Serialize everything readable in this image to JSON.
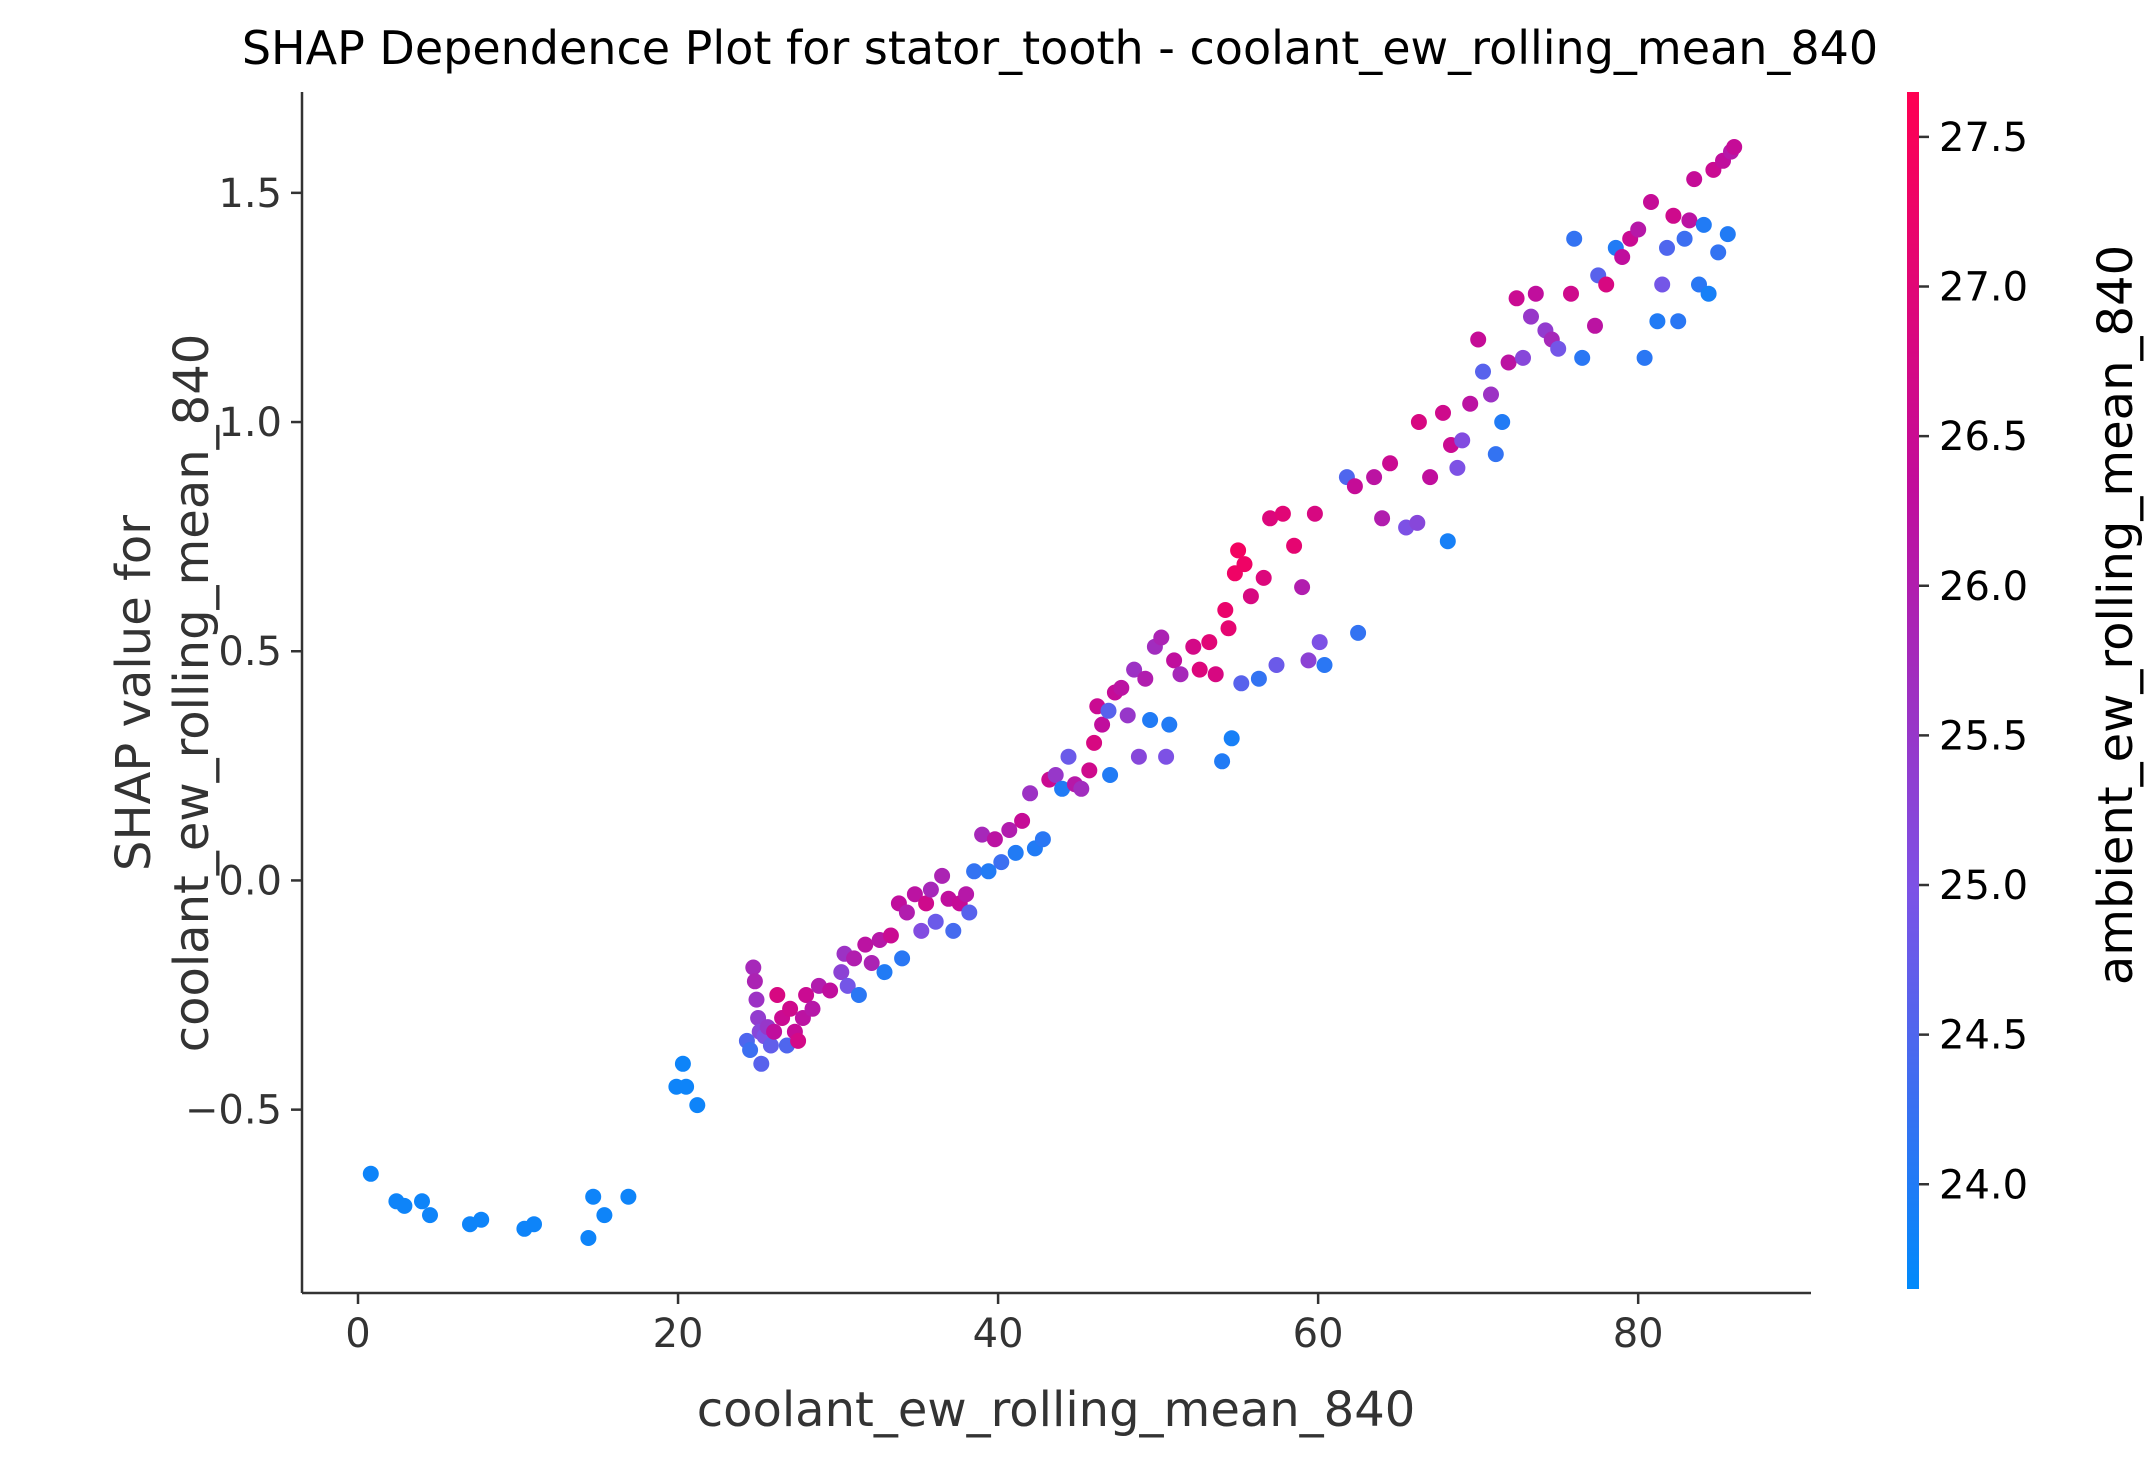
{
  "chart_data": {
    "type": "scatter",
    "title": "SHAP Dependence Plot for stator_tooth - coolant_ew_rolling_mean_840",
    "xlabel": "coolant_ew_rolling_mean_840",
    "ylabel_lines": [
      "SHAP value for",
      "coolant_ew_rolling_mean_840"
    ],
    "xlim": [
      -3.5,
      90.8
    ],
    "ylim": [
      -0.9,
      1.72
    ],
    "xticks": [
      0,
      20,
      40,
      60,
      80
    ],
    "xtick_labels": [
      "0",
      "20",
      "40",
      "60",
      "80"
    ],
    "yticks": [
      -0.5,
      0.0,
      0.5,
      1.0,
      1.5
    ],
    "ytick_labels": [
      "−0.5",
      "0.0",
      "0.5",
      "1.0",
      "1.5"
    ],
    "grid": false,
    "colorbar": {
      "label": "ambient_ew_rolling_mean_840",
      "range": [
        23.65,
        27.65
      ],
      "ticks": [
        24.0,
        24.5,
        25.0,
        25.5,
        26.0,
        26.5,
        27.0,
        27.5
      ],
      "tick_labels": [
        "24.0",
        "24.5",
        "25.0",
        "25.5",
        "26.0",
        "26.5",
        "27.0",
        "27.5"
      ],
      "colormap": [
        "#008afb",
        "#7c52e6",
        "#c10d9c",
        "#ff0052"
      ]
    },
    "points": [
      {
        "x": 0.8,
        "y": -0.64,
        "c": 23.8
      },
      {
        "x": 2.4,
        "y": -0.7,
        "c": 23.8
      },
      {
        "x": 2.9,
        "y": -0.71,
        "c": 23.8
      },
      {
        "x": 4.0,
        "y": -0.7,
        "c": 23.8
      },
      {
        "x": 4.5,
        "y": -0.73,
        "c": 23.8
      },
      {
        "x": 7.0,
        "y": -0.75,
        "c": 23.8
      },
      {
        "x": 7.7,
        "y": -0.74,
        "c": 23.8
      },
      {
        "x": 10.4,
        "y": -0.76,
        "c": 23.8
      },
      {
        "x": 11.0,
        "y": -0.75,
        "c": 23.8
      },
      {
        "x": 14.4,
        "y": -0.78,
        "c": 23.8
      },
      {
        "x": 14.7,
        "y": -0.69,
        "c": 23.8
      },
      {
        "x": 15.4,
        "y": -0.73,
        "c": 23.8
      },
      {
        "x": 16.9,
        "y": -0.69,
        "c": 23.8
      },
      {
        "x": 19.9,
        "y": -0.45,
        "c": 23.8
      },
      {
        "x": 20.3,
        "y": -0.4,
        "c": 23.8
      },
      {
        "x": 20.5,
        "y": -0.45,
        "c": 23.8
      },
      {
        "x": 21.2,
        "y": -0.49,
        "c": 23.8
      },
      {
        "x": 24.3,
        "y": -0.35,
        "c": 24.5
      },
      {
        "x": 24.5,
        "y": -0.37,
        "c": 24.3
      },
      {
        "x": 24.7,
        "y": -0.19,
        "c": 25.8
      },
      {
        "x": 24.8,
        "y": -0.22,
        "c": 25.9
      },
      {
        "x": 24.9,
        "y": -0.26,
        "c": 25.6
      },
      {
        "x": 25.0,
        "y": -0.3,
        "c": 25.4
      },
      {
        "x": 25.1,
        "y": -0.33,
        "c": 25.2
      },
      {
        "x": 25.2,
        "y": -0.4,
        "c": 24.6
      },
      {
        "x": 25.4,
        "y": -0.34,
        "c": 25.0
      },
      {
        "x": 25.6,
        "y": -0.32,
        "c": 25.5
      },
      {
        "x": 25.8,
        "y": -0.36,
        "c": 24.7
      },
      {
        "x": 26.0,
        "y": -0.33,
        "c": 26.3
      },
      {
        "x": 26.2,
        "y": -0.25,
        "c": 26.8
      },
      {
        "x": 26.5,
        "y": -0.3,
        "c": 26.5
      },
      {
        "x": 26.8,
        "y": -0.36,
        "c": 24.5
      },
      {
        "x": 27.0,
        "y": -0.28,
        "c": 26.6
      },
      {
        "x": 27.3,
        "y": -0.33,
        "c": 26.4
      },
      {
        "x": 27.5,
        "y": -0.35,
        "c": 26.7
      },
      {
        "x": 27.8,
        "y": -0.3,
        "c": 26.2
      },
      {
        "x": 28.0,
        "y": -0.25,
        "c": 26.5
      },
      {
        "x": 28.4,
        "y": -0.28,
        "c": 26.1
      },
      {
        "x": 28.8,
        "y": -0.23,
        "c": 26.0
      },
      {
        "x": 29.5,
        "y": -0.24,
        "c": 26.3
      },
      {
        "x": 30.2,
        "y": -0.2,
        "c": 25.3
      },
      {
        "x": 30.4,
        "y": -0.16,
        "c": 25.6
      },
      {
        "x": 30.6,
        "y": -0.23,
        "c": 24.9
      },
      {
        "x": 31.0,
        "y": -0.17,
        "c": 26.0
      },
      {
        "x": 31.3,
        "y": -0.25,
        "c": 24.1
      },
      {
        "x": 31.7,
        "y": -0.14,
        "c": 26.2
      },
      {
        "x": 32.1,
        "y": -0.18,
        "c": 25.9
      },
      {
        "x": 32.6,
        "y": -0.13,
        "c": 26.1
      },
      {
        "x": 32.9,
        "y": -0.2,
        "c": 24.0
      },
      {
        "x": 33.3,
        "y": -0.12,
        "c": 26.5
      },
      {
        "x": 33.8,
        "y": -0.05,
        "c": 26.3
      },
      {
        "x": 34.0,
        "y": -0.17,
        "c": 24.1
      },
      {
        "x": 34.3,
        "y": -0.07,
        "c": 26.0
      },
      {
        "x": 34.8,
        "y": -0.03,
        "c": 26.2
      },
      {
        "x": 35.2,
        "y": -0.11,
        "c": 25.1
      },
      {
        "x": 35.5,
        "y": -0.05,
        "c": 26.6
      },
      {
        "x": 35.8,
        "y": -0.02,
        "c": 25.8
      },
      {
        "x": 36.1,
        "y": -0.09,
        "c": 24.8
      },
      {
        "x": 36.5,
        "y": 0.01,
        "c": 25.9
      },
      {
        "x": 36.9,
        "y": -0.04,
        "c": 26.3
      },
      {
        "x": 37.2,
        "y": -0.11,
        "c": 24.4
      },
      {
        "x": 37.6,
        "y": -0.05,
        "c": 26.4
      },
      {
        "x": 38.0,
        "y": -0.03,
        "c": 26.1
      },
      {
        "x": 38.2,
        "y": -0.07,
        "c": 24.6
      },
      {
        "x": 38.5,
        "y": 0.02,
        "c": 24.2
      },
      {
        "x": 39.0,
        "y": 0.1,
        "c": 25.8
      },
      {
        "x": 39.4,
        "y": 0.02,
        "c": 24.0
      },
      {
        "x": 39.8,
        "y": 0.09,
        "c": 26.2
      },
      {
        "x": 40.2,
        "y": 0.04,
        "c": 24.3
      },
      {
        "x": 40.7,
        "y": 0.11,
        "c": 26.0
      },
      {
        "x": 41.1,
        "y": 0.06,
        "c": 24.0
      },
      {
        "x": 41.5,
        "y": 0.13,
        "c": 26.4
      },
      {
        "x": 42.0,
        "y": 0.19,
        "c": 25.6
      },
      {
        "x": 42.3,
        "y": 0.07,
        "c": 24.0
      },
      {
        "x": 42.8,
        "y": 0.09,
        "c": 24.1
      },
      {
        "x": 43.2,
        "y": 0.22,
        "c": 26.5
      },
      {
        "x": 43.6,
        "y": 0.23,
        "c": 25.5
      },
      {
        "x": 44.0,
        "y": 0.2,
        "c": 24.0
      },
      {
        "x": 44.4,
        "y": 0.27,
        "c": 24.8
      },
      {
        "x": 44.8,
        "y": 0.21,
        "c": 26.1
      },
      {
        "x": 45.2,
        "y": 0.2,
        "c": 25.7
      },
      {
        "x": 45.7,
        "y": 0.24,
        "c": 26.6
      },
      {
        "x": 46.0,
        "y": 0.3,
        "c": 26.8
      },
      {
        "x": 46.2,
        "y": 0.38,
        "c": 26.5
      },
      {
        "x": 46.5,
        "y": 0.34,
        "c": 26.3
      },
      {
        "x": 46.9,
        "y": 0.37,
        "c": 24.6
      },
      {
        "x": 47.0,
        "y": 0.23,
        "c": 24.0
      },
      {
        "x": 47.3,
        "y": 0.41,
        "c": 26.4
      },
      {
        "x": 47.7,
        "y": 0.42,
        "c": 26.2
      },
      {
        "x": 48.1,
        "y": 0.36,
        "c": 25.5
      },
      {
        "x": 48.5,
        "y": 0.46,
        "c": 25.6
      },
      {
        "x": 48.8,
        "y": 0.27,
        "c": 25.2
      },
      {
        "x": 49.2,
        "y": 0.44,
        "c": 26.0
      },
      {
        "x": 49.5,
        "y": 0.35,
        "c": 24.0
      },
      {
        "x": 49.8,
        "y": 0.51,
        "c": 25.7
      },
      {
        "x": 50.2,
        "y": 0.53,
        "c": 25.9
      },
      {
        "x": 50.5,
        "y": 0.27,
        "c": 25.0
      },
      {
        "x": 50.7,
        "y": 0.34,
        "c": 24.0
      },
      {
        "x": 51.0,
        "y": 0.48,
        "c": 26.3
      },
      {
        "x": 51.4,
        "y": 0.45,
        "c": 25.8
      },
      {
        "x": 52.2,
        "y": 0.51,
        "c": 26.7
      },
      {
        "x": 52.6,
        "y": 0.46,
        "c": 26.9
      },
      {
        "x": 53.2,
        "y": 0.52,
        "c": 27.0
      },
      {
        "x": 53.6,
        "y": 0.45,
        "c": 26.8
      },
      {
        "x": 54.0,
        "y": 0.26,
        "c": 24.0
      },
      {
        "x": 54.2,
        "y": 0.59,
        "c": 27.2
      },
      {
        "x": 54.4,
        "y": 0.55,
        "c": 27.1
      },
      {
        "x": 54.6,
        "y": 0.31,
        "c": 23.9
      },
      {
        "x": 54.8,
        "y": 0.67,
        "c": 27.3
      },
      {
        "x": 55.0,
        "y": 0.72,
        "c": 27.4
      },
      {
        "x": 55.2,
        "y": 0.43,
        "c": 24.6
      },
      {
        "x": 55.4,
        "y": 0.69,
        "c": 27.3
      },
      {
        "x": 55.8,
        "y": 0.62,
        "c": 26.8
      },
      {
        "x": 56.3,
        "y": 0.44,
        "c": 24.2
      },
      {
        "x": 56.6,
        "y": 0.66,
        "c": 26.9
      },
      {
        "x": 57.0,
        "y": 0.79,
        "c": 26.9
      },
      {
        "x": 57.4,
        "y": 0.47,
        "c": 24.8
      },
      {
        "x": 57.8,
        "y": 0.8,
        "c": 27.0
      },
      {
        "x": 58.5,
        "y": 0.73,
        "c": 27.1
      },
      {
        "x": 59.0,
        "y": 0.64,
        "c": 26.0
      },
      {
        "x": 59.4,
        "y": 0.48,
        "c": 25.3
      },
      {
        "x": 59.8,
        "y": 0.8,
        "c": 26.8
      },
      {
        "x": 60.1,
        "y": 0.52,
        "c": 25.0
      },
      {
        "x": 60.4,
        "y": 0.47,
        "c": 24.1
      },
      {
        "x": 61.8,
        "y": 0.88,
        "c": 24.5
      },
      {
        "x": 62.3,
        "y": 0.86,
        "c": 26.4
      },
      {
        "x": 62.5,
        "y": 0.54,
        "c": 24.2
      },
      {
        "x": 63.5,
        "y": 0.88,
        "c": 26.2
      },
      {
        "x": 64.0,
        "y": 0.79,
        "c": 26.0
      },
      {
        "x": 64.5,
        "y": 0.91,
        "c": 26.5
      },
      {
        "x": 65.5,
        "y": 0.77,
        "c": 25.0
      },
      {
        "x": 66.2,
        "y": 0.78,
        "c": 25.2
      },
      {
        "x": 66.3,
        "y": 1.0,
        "c": 26.8
      },
      {
        "x": 67.0,
        "y": 0.88,
        "c": 26.3
      },
      {
        "x": 67.8,
        "y": 1.02,
        "c": 26.6
      },
      {
        "x": 68.1,
        "y": 0.74,
        "c": 23.9
      },
      {
        "x": 68.3,
        "y": 0.95,
        "c": 26.5
      },
      {
        "x": 68.7,
        "y": 0.9,
        "c": 25.0
      },
      {
        "x": 69.0,
        "y": 0.96,
        "c": 25.1
      },
      {
        "x": 69.5,
        "y": 1.04,
        "c": 26.2
      },
      {
        "x": 70.0,
        "y": 1.18,
        "c": 26.4
      },
      {
        "x": 70.3,
        "y": 1.11,
        "c": 24.6
      },
      {
        "x": 70.8,
        "y": 1.06,
        "c": 25.6
      },
      {
        "x": 71.1,
        "y": 0.93,
        "c": 24.2
      },
      {
        "x": 71.5,
        "y": 1.0,
        "c": 24.0
      },
      {
        "x": 71.9,
        "y": 1.13,
        "c": 26.2
      },
      {
        "x": 72.4,
        "y": 1.27,
        "c": 26.5
      },
      {
        "x": 72.8,
        "y": 1.14,
        "c": 25.2
      },
      {
        "x": 73.3,
        "y": 1.23,
        "c": 25.5
      },
      {
        "x": 73.6,
        "y": 1.28,
        "c": 26.3
      },
      {
        "x": 74.2,
        "y": 1.2,
        "c": 25.4
      },
      {
        "x": 74.6,
        "y": 1.18,
        "c": 25.8
      },
      {
        "x": 75.0,
        "y": 1.16,
        "c": 24.9
      },
      {
        "x": 75.8,
        "y": 1.28,
        "c": 26.6
      },
      {
        "x": 76.0,
        "y": 1.4,
        "c": 24.2
      },
      {
        "x": 76.5,
        "y": 1.14,
        "c": 24.1
      },
      {
        "x": 77.3,
        "y": 1.21,
        "c": 26.2
      },
      {
        "x": 77.5,
        "y": 1.32,
        "c": 24.6
      },
      {
        "x": 78.0,
        "y": 1.3,
        "c": 26.8
      },
      {
        "x": 78.6,
        "y": 1.38,
        "c": 24.0
      },
      {
        "x": 79.0,
        "y": 1.36,
        "c": 26.3
      },
      {
        "x": 79.5,
        "y": 1.4,
        "c": 26.5
      },
      {
        "x": 80.0,
        "y": 1.42,
        "c": 26.1
      },
      {
        "x": 80.4,
        "y": 1.14,
        "c": 24.1
      },
      {
        "x": 80.8,
        "y": 1.48,
        "c": 26.4
      },
      {
        "x": 81.2,
        "y": 1.22,
        "c": 24.0
      },
      {
        "x": 81.5,
        "y": 1.3,
        "c": 24.9
      },
      {
        "x": 81.8,
        "y": 1.38,
        "c": 24.5
      },
      {
        "x": 82.2,
        "y": 1.45,
        "c": 26.6
      },
      {
        "x": 82.5,
        "y": 1.22,
        "c": 24.1
      },
      {
        "x": 82.9,
        "y": 1.4,
        "c": 24.3
      },
      {
        "x": 83.2,
        "y": 1.44,
        "c": 26.2
      },
      {
        "x": 83.5,
        "y": 1.53,
        "c": 26.4
      },
      {
        "x": 83.8,
        "y": 1.3,
        "c": 24.1
      },
      {
        "x": 84.1,
        "y": 1.43,
        "c": 24.0
      },
      {
        "x": 84.4,
        "y": 1.28,
        "c": 23.9
      },
      {
        "x": 84.7,
        "y": 1.55,
        "c": 26.5
      },
      {
        "x": 85.0,
        "y": 1.37,
        "c": 24.2
      },
      {
        "x": 85.3,
        "y": 1.57,
        "c": 26.3
      },
      {
        "x": 85.6,
        "y": 1.41,
        "c": 24.0
      },
      {
        "x": 85.8,
        "y": 1.59,
        "c": 26.1
      },
      {
        "x": 86.0,
        "y": 1.6,
        "c": 26.4
      }
    ]
  }
}
